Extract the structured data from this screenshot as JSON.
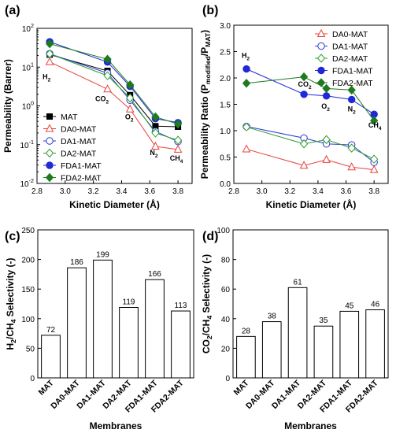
{
  "colors": {
    "MAT": "#000000",
    "DA0-MAT": "#e8413c",
    "DA1-MAT": "#2b3bd6",
    "DA2-MAT": "#2f9e2f",
    "FDA1-MAT": "#1f2ad6",
    "FDA2-MAT": "#1e7a1e"
  },
  "chart_data": [
    {
      "panel": "(a)",
      "type": "line",
      "xlabel": "Kinetic Diameter (Å)",
      "ylabel": "Permeability (Barrer)",
      "xlim": [
        2.8,
        3.9
      ],
      "ylim": [
        0.01,
        100
      ],
      "yscale": "log",
      "xticks": [
        "2.8",
        "3.0",
        "3.2",
        "3.4",
        "3.6",
        "3.8"
      ],
      "yticks": [
        "10-2",
        "10-1",
        "100",
        "101",
        "102"
      ],
      "x": [
        2.89,
        3.3,
        3.46,
        3.64,
        3.8
      ],
      "gas_labels": [
        "H2",
        "CO2",
        "O2",
        "N2",
        "CH4"
      ],
      "legend_position": "lower-left",
      "series": [
        {
          "name": "MAT",
          "marker": "square-filled",
          "values": [
            21,
            8.0,
            1.9,
            0.3,
            0.29
          ]
        },
        {
          "name": "DA0-MAT",
          "marker": "triangle-open",
          "values": [
            13.6,
            2.7,
            0.82,
            0.09,
            0.075
          ]
        },
        {
          "name": "DA1-MAT",
          "marker": "circle-open",
          "values": [
            22,
            7.0,
            1.4,
            0.22,
            0.12
          ]
        },
        {
          "name": "DA2-MAT",
          "marker": "diamond-open",
          "values": [
            22,
            6.0,
            1.6,
            0.2,
            0.13
          ]
        },
        {
          "name": "FDA1-MAT",
          "marker": "circle-filled",
          "values": [
            45,
            13.5,
            3.2,
            0.47,
            0.37
          ]
        },
        {
          "name": "FDA2-MAT",
          "marker": "diamond-filled",
          "values": [
            40,
            16,
            3.5,
            0.52,
            0.34
          ]
        }
      ]
    },
    {
      "panel": "(b)",
      "type": "line",
      "xlabel": "Kinetic Diameter (Å)",
      "ylabel_main": "Permeability Ratio (P",
      "ylabel_sub1": "modified",
      "ylabel_mid": "/P",
      "ylabel_sub2": "MAT",
      "ylabel_end": ")",
      "xlim": [
        2.8,
        3.9
      ],
      "ylim": [
        0.0,
        3.0
      ],
      "xticks": [
        "2.8",
        "3.0",
        "3.2",
        "3.4",
        "3.6",
        "3.8"
      ],
      "yticks": [
        "0.0",
        "0.5",
        "1.0",
        "1.5",
        "2.0",
        "2.5",
        "3.0"
      ],
      "x": [
        2.89,
        3.3,
        3.46,
        3.64,
        3.8
      ],
      "gas_labels": [
        "H2",
        "CO2",
        "O2",
        "N2",
        "CH4"
      ],
      "legend_position": "top-right",
      "series": [
        {
          "name": "DA0-MAT",
          "marker": "triangle-open",
          "values": [
            0.65,
            0.34,
            0.45,
            0.31,
            0.26
          ]
        },
        {
          "name": "DA1-MAT",
          "marker": "circle-open",
          "values": [
            1.08,
            0.86,
            0.75,
            0.73,
            0.4
          ]
        },
        {
          "name": "DA2-MAT",
          "marker": "diamond-open",
          "values": [
            1.07,
            0.75,
            0.83,
            0.67,
            0.46
          ]
        },
        {
          "name": "FDA1-MAT",
          "marker": "circle-filled",
          "values": [
            2.17,
            1.69,
            1.66,
            1.59,
            1.31
          ]
        },
        {
          "name": "FDA2-MAT",
          "marker": "diamond-filled",
          "values": [
            1.9,
            2.02,
            1.8,
            1.77,
            1.19
          ]
        }
      ]
    },
    {
      "panel": "(c)",
      "type": "bar",
      "xlabel": "Membranes",
      "ylabel_pre": "H",
      "ylabel_sub1": "2",
      "ylabel_mid": "/CH",
      "ylabel_sub2": "4",
      "ylabel_end": " Selectivity (-)",
      "ylim": [
        0,
        250
      ],
      "yticks": [
        "0",
        "50",
        "100",
        "150",
        "200",
        "250"
      ],
      "categories": [
        "MAT",
        "DA0-MAT",
        "DA1-MAT",
        "DA2-MAT",
        "FDA1-MAT",
        "FDA2-MAT"
      ],
      "values": [
        72,
        186,
        199,
        119,
        166,
        113
      ],
      "data_labels": [
        "72",
        "186",
        "199",
        "119",
        "166",
        "113"
      ]
    },
    {
      "panel": "(d)",
      "type": "bar",
      "xlabel": "Membranes",
      "ylabel_pre": "CO",
      "ylabel_sub1": "2",
      "ylabel_mid": "/CH",
      "ylabel_sub2": "4",
      "ylabel_end": " Selectivity (-)",
      "ylim": [
        0,
        100
      ],
      "yticks": [
        "0",
        "20",
        "40",
        "60",
        "80",
        "100"
      ],
      "categories": [
        "MAT",
        "DA0-MAT",
        "DA1-MAT",
        "DA2-MAT",
        "FDA1-MAT",
        "FDA2-MAT"
      ],
      "values": [
        28,
        38,
        61,
        35,
        45,
        46
      ],
      "data_labels": [
        "28",
        "38",
        "61",
        "35",
        "45",
        "46"
      ]
    }
  ]
}
